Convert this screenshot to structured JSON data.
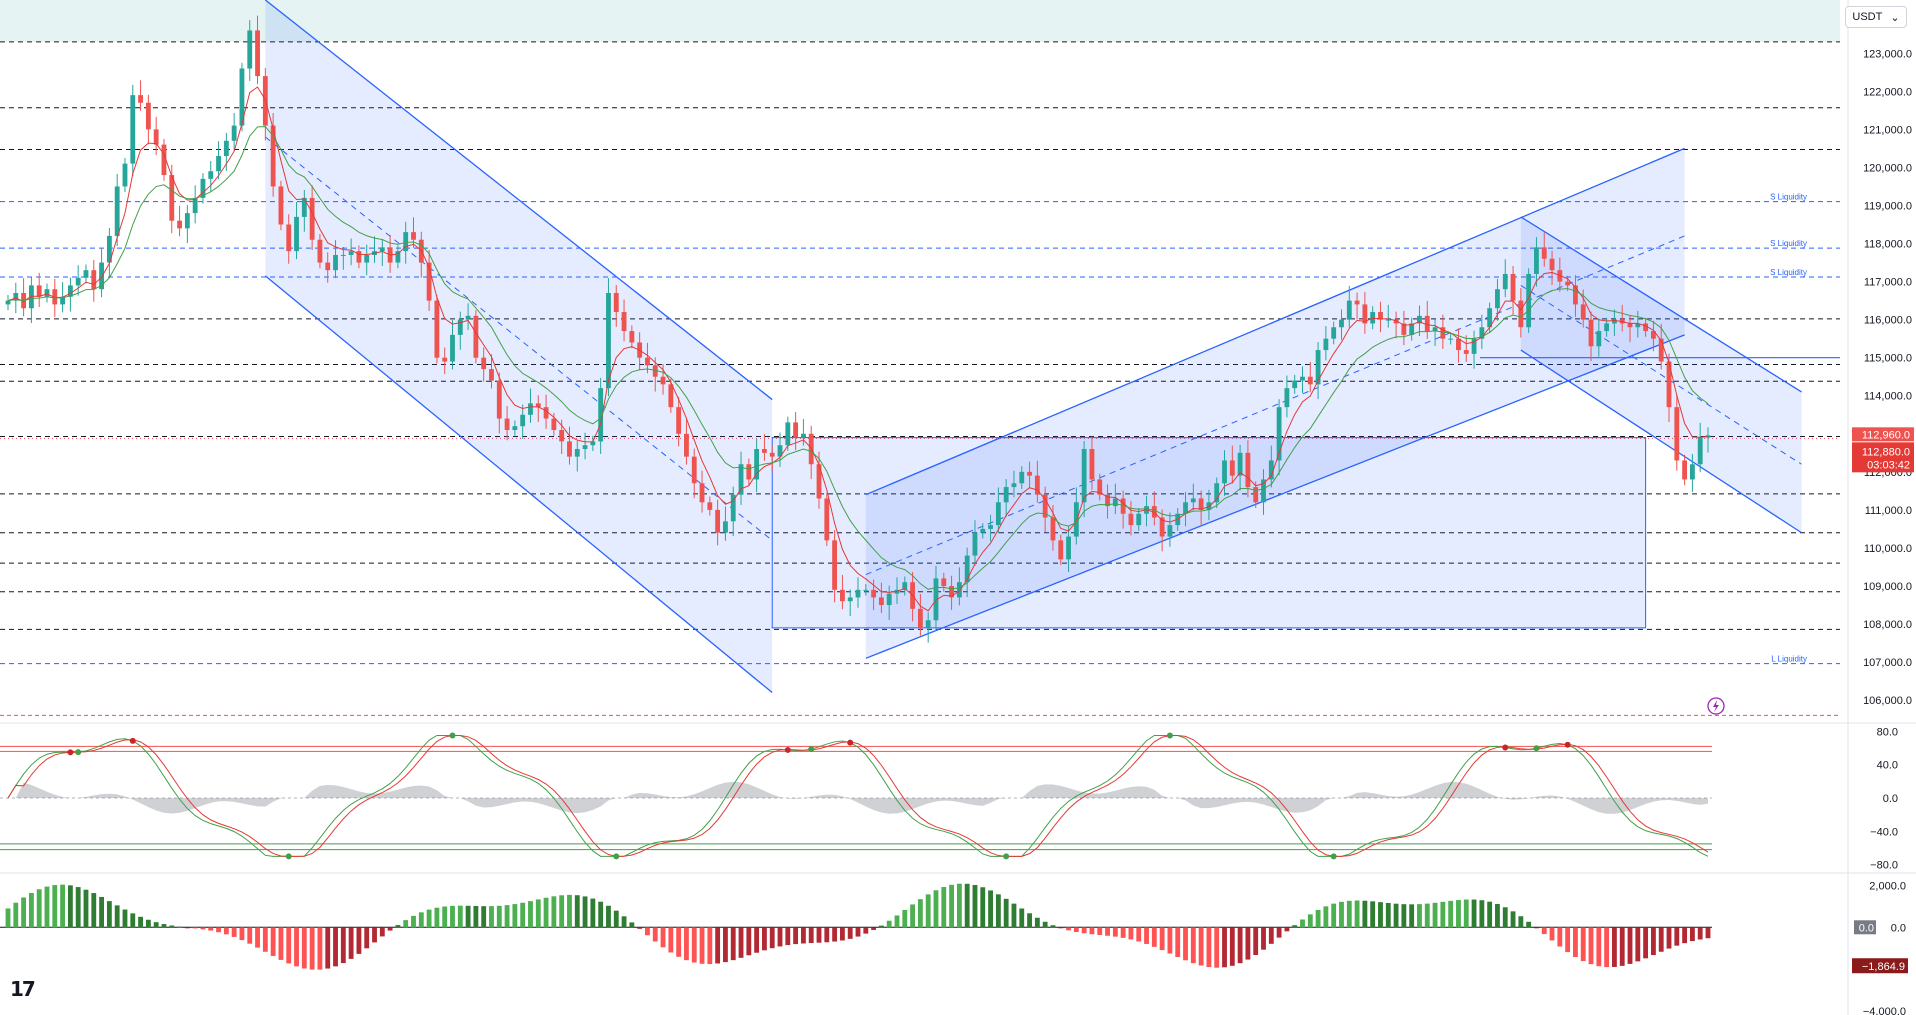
{
  "toolbar": {
    "currency": "USDT",
    "currency_chevron_icon": "chevron-down-icon"
  },
  "logo": {
    "text": "17",
    "icon": "tradingview-logo-icon"
  },
  "flash_icon": "lightning-circle-icon",
  "colors": {
    "up": "#26a69a",
    "down": "#ef5350",
    "channel": "#2962ff",
    "channel_fill": "rgba(41,98,255,0.12)",
    "ema_fast": "#e53935",
    "ema_slow": "#43a047",
    "top_zone": "rgba(38,166,154,0.12)"
  },
  "chart_data": [
    {
      "type": "candlestick",
      "price_axis": {
        "ticks": [
          "123,000.0",
          "122,000.0",
          "121,000.0",
          "120,000.0",
          "119,000.0",
          "118,000.0",
          "117,000.0",
          "116,000.0",
          "115,000.0",
          "114,000.0",
          "113,000.0",
          "112,000.0",
          "111,000.0",
          "110,000.0",
          "109,000.0",
          "108,000.0",
          "107,000.0",
          "106,000.0"
        ],
        "range": [
          105400,
          124400
        ]
      },
      "current_price_labels": [
        "112,960.0",
        "112,880.0",
        "03:03:42"
      ],
      "support_resistance_levels": [
        123300,
        121570,
        120470,
        116020,
        114820,
        114380,
        112930,
        111420,
        110400,
        109600,
        108850,
        107860
      ],
      "liquidity_levels": [
        {
          "price": 119100,
          "label": "S Liquidity"
        },
        {
          "price": 117880,
          "label": "S Liquidity"
        },
        {
          "price": 117120,
          "label": "S Liquidity"
        },
        {
          "price": 106960,
          "label": "L Liquidity"
        }
      ],
      "candles_close": [
        116500,
        116700,
        116300,
        116900,
        116600,
        116800,
        116400,
        116600,
        116900,
        117100,
        117300,
        116800,
        117500,
        118200,
        119500,
        120100,
        121900,
        121700,
        121000,
        120600,
        119800,
        118600,
        118400,
        118800,
        119200,
        119700,
        119900,
        120300,
        120700,
        121100,
        122600,
        123600,
        122400,
        121100,
        119500,
        118500,
        117800,
        118700,
        119200,
        118100,
        117500,
        117300,
        117700,
        117700,
        117800,
        117500,
        117700,
        117800,
        117900,
        117500,
        117800,
        118300,
        118100,
        117500,
        116500,
        115000,
        114900,
        115600,
        116000,
        116100,
        115000,
        114700,
        114400,
        113400,
        113100,
        113200,
        113500,
        113800,
        113700,
        113400,
        113100,
        112800,
        112400,
        112600,
        112700,
        112800,
        114200,
        116700,
        116200,
        115700,
        115400,
        115000,
        114800,
        114500,
        114300,
        113700,
        113000,
        112400,
        111700,
        111200,
        111000,
        110400,
        110700,
        111400,
        112200,
        111800,
        112600,
        112500,
        112400,
        112700,
        113300,
        112900,
        113000,
        112200,
        111300,
        110200,
        108900,
        108600,
        108700,
        108900,
        108900,
        108700,
        108500,
        108800,
        108900,
        109100,
        108400,
        107900,
        108100,
        109200,
        109000,
        108700,
        109100,
        109800,
        110400,
        110500,
        110600,
        111200,
        111600,
        111700,
        112000,
        111900,
        111400,
        110800,
        110200,
        109700,
        110300,
        111200,
        112600,
        111800,
        111400,
        111100,
        111300,
        110900,
        110600,
        110900,
        111100,
        110800,
        110300,
        110600,
        110900,
        111200,
        111300,
        111000,
        111200,
        111700,
        112300,
        111900,
        112500,
        111600,
        111200,
        111800,
        112300,
        113700,
        114200,
        114400,
        114500,
        114300,
        115200,
        115500,
        115800,
        116000,
        116500,
        116400,
        115900,
        116200,
        116000,
        116000,
        115900,
        115600,
        115900,
        116100,
        115700,
        115800,
        115500,
        115500,
        115200,
        115100,
        115500,
        115800,
        116300,
        116800,
        117200,
        116500,
        115800,
        117200,
        117900,
        117600,
        117300,
        117000,
        116900,
        116400,
        116000,
        115300,
        115700,
        115900,
        116000,
        115900,
        115800,
        115900,
        115700,
        115500,
        114900,
        113700,
        112300,
        111800,
        112200,
        112900,
        112960
      ],
      "ema_fast_color": "red",
      "ema_slow_color": "green"
    },
    {
      "type": "line",
      "name_hidden": true,
      "y_axis": {
        "ticks": [
          "80.0",
          "40.0",
          "0.0",
          "−40.0",
          "−80.0"
        ],
        "range": [
          -90,
          90
        ]
      },
      "bands": [
        62,
        56,
        -55,
        -62
      ]
    },
    {
      "type": "bar",
      "y_axis": {
        "ticks": [
          "2,000.0",
          "0.0",
          "−4,000.0"
        ],
        "range": [
          -4200,
          2600
        ]
      },
      "labels": [
        "0.0",
        "−1,864.9"
      ]
    }
  ]
}
